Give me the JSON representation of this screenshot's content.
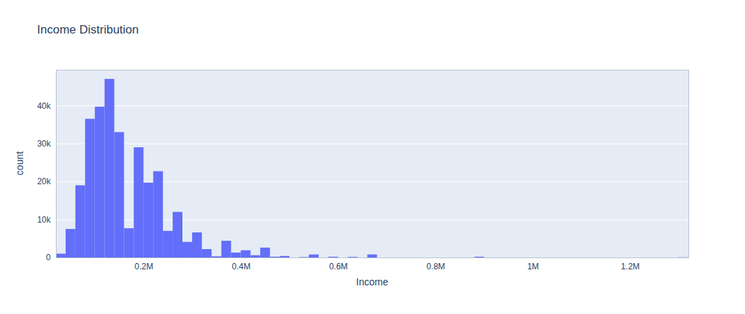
{
  "chart_data": {
    "type": "histogram",
    "title": "Income Distribution",
    "x_label": "Income",
    "y_label": "count",
    "bins": [
      20000,
      40000,
      60000,
      80000,
      100000,
      120000,
      140000,
      160000,
      180000,
      200000,
      220000,
      240000,
      260000,
      280000,
      300000,
      320000,
      340000,
      360000,
      380000,
      400000,
      420000,
      440000,
      460000,
      480000,
      500000,
      520000,
      540000,
      560000,
      580000,
      600000,
      620000,
      640000,
      660000,
      680000,
      700000,
      720000,
      740000,
      760000,
      780000,
      800000,
      820000,
      840000,
      860000,
      880000,
      900000,
      920000,
      940000,
      960000,
      980000,
      1000000,
      1020000,
      1040000,
      1060000,
      1080000,
      1100000,
      1120000,
      1140000,
      1160000,
      1180000,
      1200000,
      1220000,
      1240000,
      1260000,
      1280000,
      1300000,
      1320000
    ],
    "values": [
      1000,
      7500,
      19000,
      36500,
      39700,
      47000,
      33000,
      7700,
      29000,
      19700,
      22700,
      7000,
      12000,
      4100,
      6600,
      2200,
      300,
      4400,
      1300,
      1900,
      600,
      2600,
      200,
      400,
      0,
      100,
      800,
      0,
      200,
      0,
      150,
      0,
      800,
      0,
      0,
      0,
      0,
      0,
      0,
      0,
      0,
      0,
      0,
      200,
      0,
      0,
      0,
      0,
      0,
      0,
      0,
      0,
      0,
      0,
      0,
      0,
      0,
      0,
      0,
      0,
      0,
      0,
      0,
      0,
      50
    ],
    "color": "#636efa",
    "xlim": [
      20000,
      1320000
    ],
    "ylim": [
      0,
      49400
    ],
    "xticks": [
      {
        "value": 200000,
        "label": "0.2M"
      },
      {
        "value": 400000,
        "label": "0.4M"
      },
      {
        "value": 600000,
        "label": "0.6M"
      },
      {
        "value": 800000,
        "label": "0.8M"
      },
      {
        "value": 1000000,
        "label": "1M"
      },
      {
        "value": 1200000,
        "label": "1.2M"
      }
    ],
    "yticks": [
      0,
      {
        "value": 10000,
        "label": "10k"
      },
      {
        "value": 20000,
        "label": "20k"
      },
      {
        "value": 30000,
        "label": "30k"
      },
      {
        "value": 40000,
        "label": "40k"
      }
    ],
    "grid": true
  }
}
